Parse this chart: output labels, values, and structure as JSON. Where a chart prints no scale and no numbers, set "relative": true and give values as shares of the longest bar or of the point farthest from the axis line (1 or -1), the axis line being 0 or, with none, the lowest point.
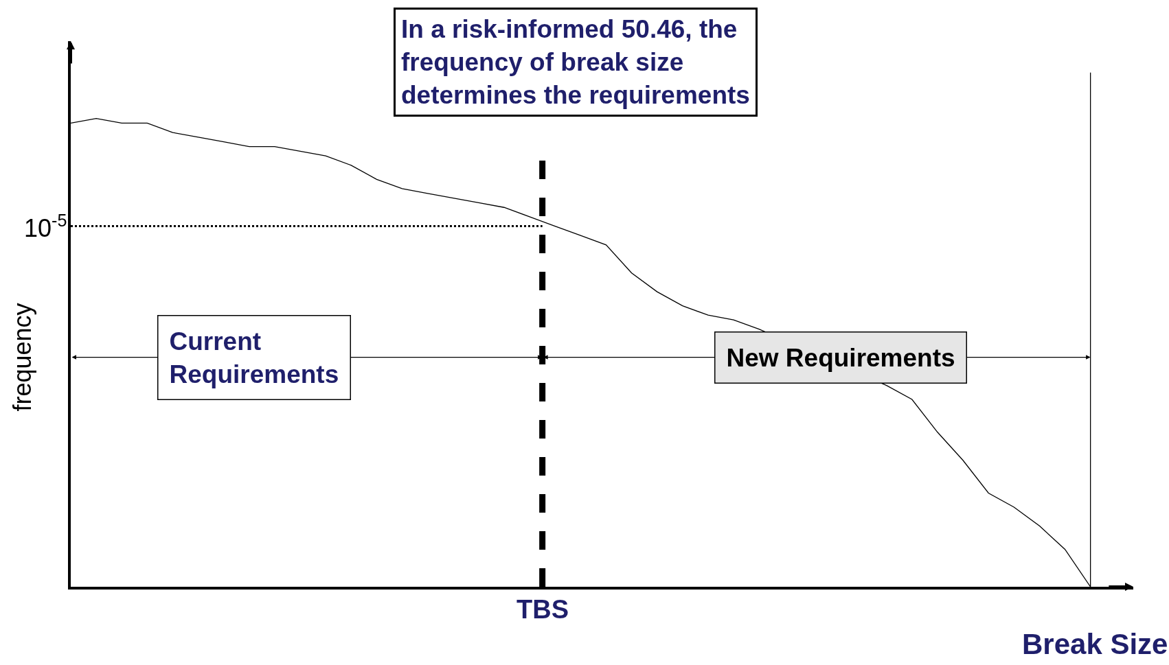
{
  "chart_data": {
    "type": "line",
    "title": "In a risk-informed 50.46, the\nfrequency of break size\ndetermines the requirements",
    "xlabel": "Break Size",
    "ylabel": "frequency",
    "relative": true,
    "marker": "none",
    "line_style": "solid",
    "categories": [
      null,
      null,
      null,
      null,
      null,
      null,
      null,
      null,
      null,
      null,
      null,
      null,
      null,
      null,
      null,
      null,
      null,
      null,
      null,
      null,
      null,
      null,
      null,
      null,
      null,
      null,
      null,
      null,
      null,
      null,
      null,
      null,
      null,
      null,
      null,
      null,
      null,
      null,
      null,
      null,
      null
    ],
    "series": [
      {
        "color": "#000000",
        "values": [
          0.99,
          1,
          0.99,
          0.99,
          0.97,
          0.96,
          0.95,
          0.94,
          0.94,
          0.93,
          0.92,
          0.9,
          0.87,
          0.85,
          0.84,
          0.83,
          0.82,
          0.81,
          0.79,
          0.77,
          0.75,
          0.73,
          0.67,
          0.63,
          0.6,
          0.58,
          0.57,
          0.55,
          null,
          null,
          null,
          null,
          0.43,
          0.4,
          0.33,
          0.27,
          0.2,
          0.17,
          0.13,
          0.08,
          0
        ]
      }
    ],
    "ref_lines": [
      {
        "axis": "y",
        "value": 0.77,
        "line_style": "dotted",
        "color": "#000000"
      }
    ],
    "annotations": [
      "Current\nRequirements",
      "New Requirements",
      "10$^{-5}$",
      "TBS"
    ]
  }
}
